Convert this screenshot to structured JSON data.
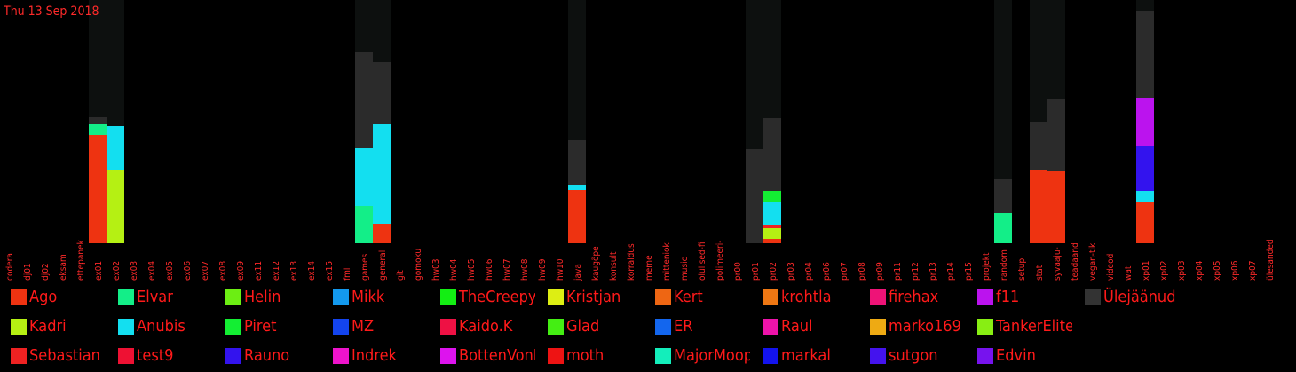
{
  "chart_data": {
    "type": "bar",
    "stacked": true,
    "date_label": "Thu 13 Sep 2018",
    "categories": [
      "codera",
      "dj01",
      "dj02",
      "eksam",
      "ettepanek",
      "ex01",
      "ex02",
      "ex03",
      "ex04",
      "ex05",
      "ex06",
      "ex07",
      "ex08",
      "ex09",
      "ex11",
      "ex12",
      "ex13",
      "ex14",
      "ex15",
      "fml",
      "games",
      "general",
      "git",
      "gomoku",
      "hw03",
      "hw04",
      "hw05",
      "hw06",
      "hw07",
      "hw08",
      "hw09",
      "hw10",
      "java",
      "kaugõpe",
      "konsult",
      "korraldus",
      "meme",
      "mitteniok",
      "music",
      "olulised-fi",
      "polimeeri-",
      "pr00",
      "pr01",
      "pr02",
      "pr03",
      "pr04",
      "pr06",
      "pr07",
      "pr08",
      "pr09",
      "pr11",
      "pr12",
      "pr13",
      "pr14",
      "pr15",
      "projekt",
      "random",
      "setup",
      "stat",
      "syvaaju-",
      "teadaand",
      "vegan-tik",
      "videod",
      "wat",
      "xp01",
      "xp02",
      "xp03",
      "xp04",
      "xp05",
      "xp06",
      "xp07",
      "ülesanded"
    ],
    "ymax": 274,
    "background_series": "Ülejäänud",
    "series": [
      {
        "name": "Ago",
        "color": "#ee3311",
        "values": {
          "ex01": 122,
          "general": 22,
          "java": 60,
          "pr02": 5,
          "stat": 83,
          "syvaaju-": 81,
          "xp01": 47
        }
      },
      {
        "name": "Kadri",
        "color": "#b5f013",
        "values": {
          "ex02": 82,
          "pr02": 12
        }
      },
      {
        "name": "Sebastian",
        "color": "#ee2222",
        "values": {
          "pr02": 4
        }
      },
      {
        "name": "Elvar",
        "color": "#13ee88",
        "values": {
          "ex01": 12,
          "games": 42,
          "random": 34
        }
      },
      {
        "name": "Anubis",
        "color": "#13dff0",
        "values": {
          "ex02": 50,
          "games": 65,
          "general": 112,
          "java": 6,
          "pr02": 26,
          "xp01": 12
        }
      },
      {
        "name": "test9",
        "color": "#ee1133",
        "values": {}
      },
      {
        "name": "Helin",
        "color": "#6cee13",
        "values": {}
      },
      {
        "name": "Piret",
        "color": "#13ee33",
        "values": {
          "pr02": 12
        }
      },
      {
        "name": "Rauno",
        "color": "#3313ee",
        "values": {
          "xp01": 50
        }
      },
      {
        "name": "Mikk",
        "color": "#1399ee",
        "values": {}
      },
      {
        "name": "MZ",
        "color": "#1344ee",
        "values": {}
      },
      {
        "name": "Indrek",
        "color": "#ee13cc",
        "values": {}
      },
      {
        "name": "TheCreepySheep",
        "color": "#13ee13",
        "values": {}
      },
      {
        "name": "Kaido.K",
        "color": "#ee1144",
        "values": {}
      },
      {
        "name": "BottenVonBot",
        "color": "#dd13ee",
        "values": {}
      },
      {
        "name": "Kristjan",
        "color": "#ddee13",
        "values": {}
      },
      {
        "name": "Glad",
        "color": "#44ee13",
        "values": {}
      },
      {
        "name": "moth",
        "color": "#ee1313",
        "values": {}
      },
      {
        "name": "Kert",
        "color": "#ee6613",
        "values": {}
      },
      {
        "name": "ER",
        "color": "#1366ee",
        "values": {}
      },
      {
        "name": "MajorMoopsy",
        "color": "#13eebb",
        "values": {}
      },
      {
        "name": "krohtla",
        "color": "#ee7713",
        "values": {}
      },
      {
        "name": "Raul",
        "color": "#ee13aa",
        "values": {}
      },
      {
        "name": "markal",
        "color": "#1313ee",
        "values": {}
      },
      {
        "name": "firehax",
        "color": "#ee1377",
        "values": {}
      },
      {
        "name": "marko169",
        "color": "#eeaa13",
        "values": {}
      },
      {
        "name": "sutgon",
        "color": "#4413ee",
        "values": {}
      },
      {
        "name": "f11",
        "color": "#bb13ee",
        "values": {
          "xp01": 55
        }
      },
      {
        "name": "TankerElite",
        "color": "#88ee13",
        "values": {}
      },
      {
        "name": "Edvin",
        "color": "#7713ee",
        "values": {}
      },
      {
        "name": "Ülejäänud",
        "color": "#333333",
        "values": {
          "ex01": 8,
          "games": 108,
          "general": 70,
          "java": 50,
          "pr01": 106,
          "pr02": 82,
          "random": 38,
          "stat": 54,
          "syvaaju-": 82,
          "xp01": 98
        }
      }
    ]
  },
  "legend": [
    {
      "name": "Ago",
      "color": "#ee3311"
    },
    {
      "name": "Kadri",
      "color": "#b5f013"
    },
    {
      "name": "Sebastian",
      "color": "#ee2222"
    },
    {
      "name": "Elvar",
      "color": "#13ee88"
    },
    {
      "name": "Anubis",
      "color": "#13dff0"
    },
    {
      "name": "test9",
      "color": "#ee1133"
    },
    {
      "name": "Helin",
      "color": "#6cee13"
    },
    {
      "name": "Piret",
      "color": "#13ee33"
    },
    {
      "name": "Rauno",
      "color": "#3313ee"
    },
    {
      "name": "Mikk",
      "color": "#1399ee"
    },
    {
      "name": "MZ",
      "color": "#1344ee"
    },
    {
      "name": "Indrek",
      "color": "#ee13cc"
    },
    {
      "name": "TheCreepySheep",
      "color": "#13ee13"
    },
    {
      "name": "Kaido.K",
      "color": "#ee1144"
    },
    {
      "name": "BottenVonBot",
      "color": "#dd13ee"
    },
    {
      "name": "Kristjan",
      "color": "#ddee13"
    },
    {
      "name": "Glad",
      "color": "#44ee13"
    },
    {
      "name": "moth",
      "color": "#ee1313"
    },
    {
      "name": "Kert",
      "color": "#ee6613"
    },
    {
      "name": "ER",
      "color": "#1366ee"
    },
    {
      "name": "MajorMoopsy",
      "color": "#13eebb"
    },
    {
      "name": "krohtla",
      "color": "#ee7713"
    },
    {
      "name": "Raul",
      "color": "#ee13aa"
    },
    {
      "name": "markal",
      "color": "#1313ee"
    },
    {
      "name": "firehax",
      "color": "#ee1377"
    },
    {
      "name": "marko169",
      "color": "#eeaa13"
    },
    {
      "name": "sutgon",
      "color": "#4413ee"
    },
    {
      "name": "f11",
      "color": "#bb13ee"
    },
    {
      "name": "TankerElite",
      "color": "#88ee13"
    },
    {
      "name": "Edvin",
      "color": "#7713ee"
    },
    {
      "name": "Ülejäänud",
      "color": "#333333"
    }
  ]
}
